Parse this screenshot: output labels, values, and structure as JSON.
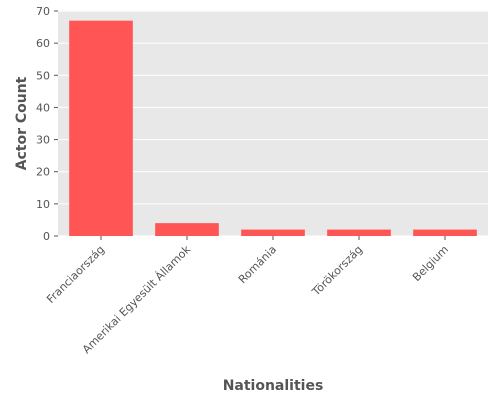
{
  "chart_data": {
    "type": "bar",
    "categories": [
      "Franciaország",
      "Amerikai Egyesült Államok",
      "Románia",
      "Törökország",
      "Belgium"
    ],
    "values": [
      67,
      4,
      2,
      2,
      2
    ],
    "xlabel": "Nationalities",
    "ylabel": "Actor Count",
    "ylim": [
      0,
      70
    ],
    "yticks": [
      0,
      10,
      20,
      30,
      40,
      50,
      60,
      70
    ],
    "grid": true,
    "legend": "none",
    "colors": {
      "bar": "#ff5555",
      "plot_background": "#e8e8e8",
      "grid": "#ffffff",
      "text": "#555555"
    }
  }
}
